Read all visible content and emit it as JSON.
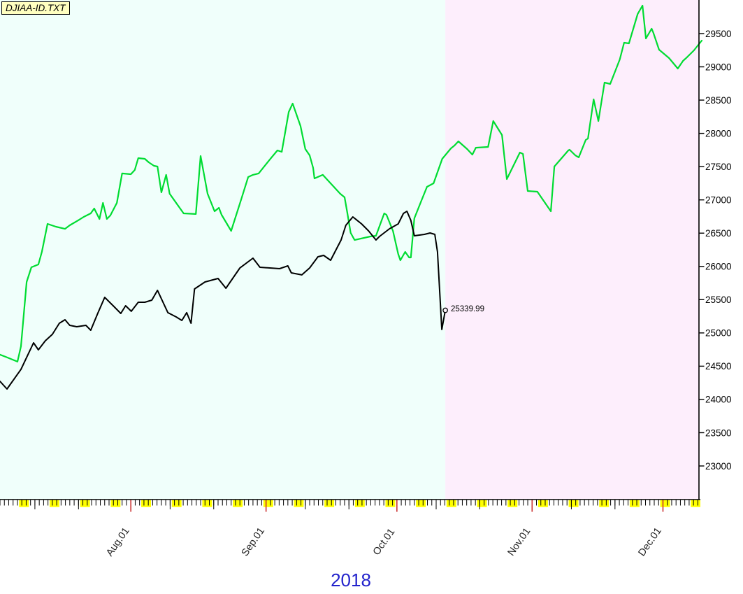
{
  "window": {
    "title_box": {
      "label": "DJIAA-ID.TXT"
    }
  },
  "colors": {
    "past_region": "#F0FFFB",
    "future_region": "#FDEEFC",
    "weekend_highlight": "#FFFF00",
    "month_tick_red": "#CC3333",
    "axis_black": "#000000",
    "month_label_text": "#222222",
    "year_label_blue": "#2222CC",
    "title_bg_yellow": "#FFFFC0",
    "black_line": "#000000",
    "green_line": "#00DC32"
  },
  "chart_data": {
    "type": "line",
    "title": "DJIAA-ID.TXT",
    "x_axis": {
      "year_label": "2018",
      "total_days": 160,
      "month_ticks": [
        {
          "label": "Aug.01",
          "day": 30
        },
        {
          "label": "Sep.01",
          "day": 61
        },
        {
          "label": "Oct.01",
          "day": 91
        },
        {
          "label": "Nov.01",
          "day": 122
        },
        {
          "label": "Dec.01",
          "day": 152
        }
      ],
      "ten_day_tick_days": [
        8,
        18,
        39,
        49,
        70,
        80,
        100,
        110,
        131,
        141
      ],
      "weekend_offset": 5,
      "week_length": 7
    },
    "y_axis": {
      "side": "right",
      "min": 23000,
      "max": 29500,
      "step": 500,
      "tick_values": [
        23000,
        23500,
        24000,
        24500,
        25000,
        25500,
        26000,
        26500,
        27000,
        27500,
        28000,
        28500,
        29000,
        29500
      ]
    },
    "divider_day": 102.1,
    "series": [
      {
        "name": "green-projection-line",
        "color": "#00DC32",
        "points": [
          [
            0,
            24673
          ],
          [
            1.3,
            24641
          ],
          [
            4,
            24568
          ],
          [
            4.8,
            24799
          ],
          [
            6.1,
            25766
          ],
          [
            7.2,
            25987
          ],
          [
            8.8,
            26029
          ],
          [
            9.6,
            26218
          ],
          [
            10.9,
            26639
          ],
          [
            12.8,
            26597
          ],
          [
            14.9,
            26565
          ],
          [
            16,
            26618
          ],
          [
            17.9,
            26691
          ],
          [
            19.2,
            26744
          ],
          [
            20.8,
            26797
          ],
          [
            21.6,
            26871
          ],
          [
            22.8,
            26713
          ],
          [
            23.6,
            26955
          ],
          [
            24.5,
            26713
          ],
          [
            25.3,
            26766
          ],
          [
            26.8,
            26955
          ],
          [
            28,
            27397
          ],
          [
            30,
            27386
          ],
          [
            30.9,
            27449
          ],
          [
            31.7,
            27628
          ],
          [
            33.2,
            27617
          ],
          [
            34.1,
            27565
          ],
          [
            35.3,
            27512
          ],
          [
            36.1,
            27502
          ],
          [
            37,
            27113
          ],
          [
            38.1,
            27376
          ],
          [
            38.9,
            27092
          ],
          [
            42.1,
            26797
          ],
          [
            44.9,
            26787
          ],
          [
            46,
            27659
          ],
          [
            47.6,
            27092
          ],
          [
            49.2,
            26829
          ],
          [
            50.2,
            26881
          ],
          [
            50.8,
            26776
          ],
          [
            53,
            26534
          ],
          [
            55.3,
            27008
          ],
          [
            56.9,
            27344
          ],
          [
            58,
            27376
          ],
          [
            59.3,
            27397
          ],
          [
            62,
            27618
          ],
          [
            63.6,
            27744
          ],
          [
            64.6,
            27723
          ],
          [
            66.2,
            28322
          ],
          [
            67.1,
            28448
          ],
          [
            68.9,
            28112
          ],
          [
            70,
            27765
          ],
          [
            71,
            27670
          ],
          [
            71.8,
            27481
          ],
          [
            72.1,
            27323
          ],
          [
            74,
            27376
          ],
          [
            78,
            27092
          ],
          [
            79,
            27039
          ],
          [
            79.6,
            26818
          ],
          [
            80.4,
            26503
          ],
          [
            81.3,
            26397
          ],
          [
            84.9,
            26450
          ],
          [
            86.2,
            26460
          ],
          [
            88.1,
            26797
          ],
          [
            88.6,
            26776
          ],
          [
            90.1,
            26534
          ],
          [
            91.3,
            26187
          ],
          [
            91.8,
            26092
          ],
          [
            92.9,
            26218
          ],
          [
            93.8,
            26134
          ],
          [
            94.2,
            26134
          ],
          [
            95,
            26723
          ],
          [
            96.6,
            26986
          ],
          [
            97.9,
            27197
          ],
          [
            99.4,
            27249
          ],
          [
            101.4,
            27617
          ],
          [
            103.4,
            27775
          ],
          [
            104.2,
            27817
          ],
          [
            105.1,
            27880
          ],
          [
            107.1,
            27765
          ],
          [
            108.3,
            27680
          ],
          [
            109.1,
            27785
          ],
          [
            111.9,
            27796
          ],
          [
            113.1,
            28185
          ],
          [
            115.1,
            27975
          ],
          [
            116.2,
            27312
          ],
          [
            119.2,
            27712
          ],
          [
            119.9,
            27691
          ],
          [
            121,
            27133
          ],
          [
            123.2,
            27123
          ],
          [
            126.3,
            26829
          ],
          [
            127.1,
            27502
          ],
          [
            130.3,
            27744
          ],
          [
            130.6,
            27754
          ],
          [
            131.9,
            27670
          ],
          [
            132.7,
            27639
          ],
          [
            134.3,
            27901
          ],
          [
            134.8,
            27922
          ],
          [
            136.1,
            28511
          ],
          [
            137.2,
            28185
          ],
          [
            138.6,
            28764
          ],
          [
            139.9,
            28743
          ],
          [
            142.1,
            29111
          ],
          [
            143.1,
            29363
          ],
          [
            144.2,
            29353
          ],
          [
            146.2,
            29795
          ],
          [
            147.3,
            29921
          ],
          [
            148.1,
            29426
          ],
          [
            149.4,
            29574
          ],
          [
            149.8,
            29511
          ],
          [
            151.1,
            29258
          ],
          [
            153.4,
            29132
          ],
          [
            155.4,
            28974
          ],
          [
            156.6,
            29090
          ],
          [
            157.5,
            29143
          ],
          [
            159.1,
            29248
          ],
          [
            160.9,
            29395
          ]
        ]
      },
      {
        "name": "black-price-line",
        "color": "#000000",
        "end_label": "25339.99",
        "end_marker": true,
        "points": [
          [
            0,
            24273
          ],
          [
            1.6,
            24157
          ],
          [
            4.8,
            24452
          ],
          [
            7.7,
            24851
          ],
          [
            8.8,
            24746
          ],
          [
            10.4,
            24883
          ],
          [
            12,
            24978
          ],
          [
            13.6,
            25146
          ],
          [
            14.9,
            25198
          ],
          [
            16,
            25114
          ],
          [
            17.6,
            25093
          ],
          [
            19.7,
            25114
          ],
          [
            20.8,
            25040
          ],
          [
            22.4,
            25293
          ],
          [
            24,
            25535
          ],
          [
            26.1,
            25398
          ],
          [
            27.7,
            25293
          ],
          [
            28.8,
            25409
          ],
          [
            30.1,
            25325
          ],
          [
            31.7,
            25461
          ],
          [
            33.2,
            25461
          ],
          [
            34.8,
            25493
          ],
          [
            36.1,
            25640
          ],
          [
            38.5,
            25304
          ],
          [
            40.4,
            25240
          ],
          [
            41.7,
            25188
          ],
          [
            42.8,
            25304
          ],
          [
            43.8,
            25146
          ],
          [
            44.6,
            25661
          ],
          [
            47,
            25766
          ],
          [
            50,
            25819
          ],
          [
            51.8,
            25671
          ],
          [
            55,
            25977
          ],
          [
            58,
            26124
          ],
          [
            59.6,
            25987
          ],
          [
            64.1,
            25966
          ],
          [
            66,
            26008
          ],
          [
            66.8,
            25903
          ],
          [
            69.2,
            25872
          ],
          [
            71,
            25977
          ],
          [
            72.9,
            26145
          ],
          [
            74.2,
            26166
          ],
          [
            75.8,
            26092
          ],
          [
            78.2,
            26397
          ],
          [
            79.3,
            26618
          ],
          [
            80.9,
            26744
          ],
          [
            82.9,
            26639
          ],
          [
            84.5,
            26534
          ],
          [
            86.2,
            26397
          ],
          [
            87,
            26450
          ],
          [
            89.3,
            26566
          ],
          [
            91.3,
            26639
          ],
          [
            92.5,
            26797
          ],
          [
            93.3,
            26828
          ],
          [
            94.2,
            26692
          ],
          [
            95,
            26460
          ],
          [
            97.3,
            26481
          ],
          [
            98.6,
            26502
          ],
          [
            99.7,
            26481
          ],
          [
            100.3,
            26218
          ],
          [
            101.3,
            25052
          ],
          [
            102.1,
            25339.99
          ]
        ]
      }
    ]
  }
}
